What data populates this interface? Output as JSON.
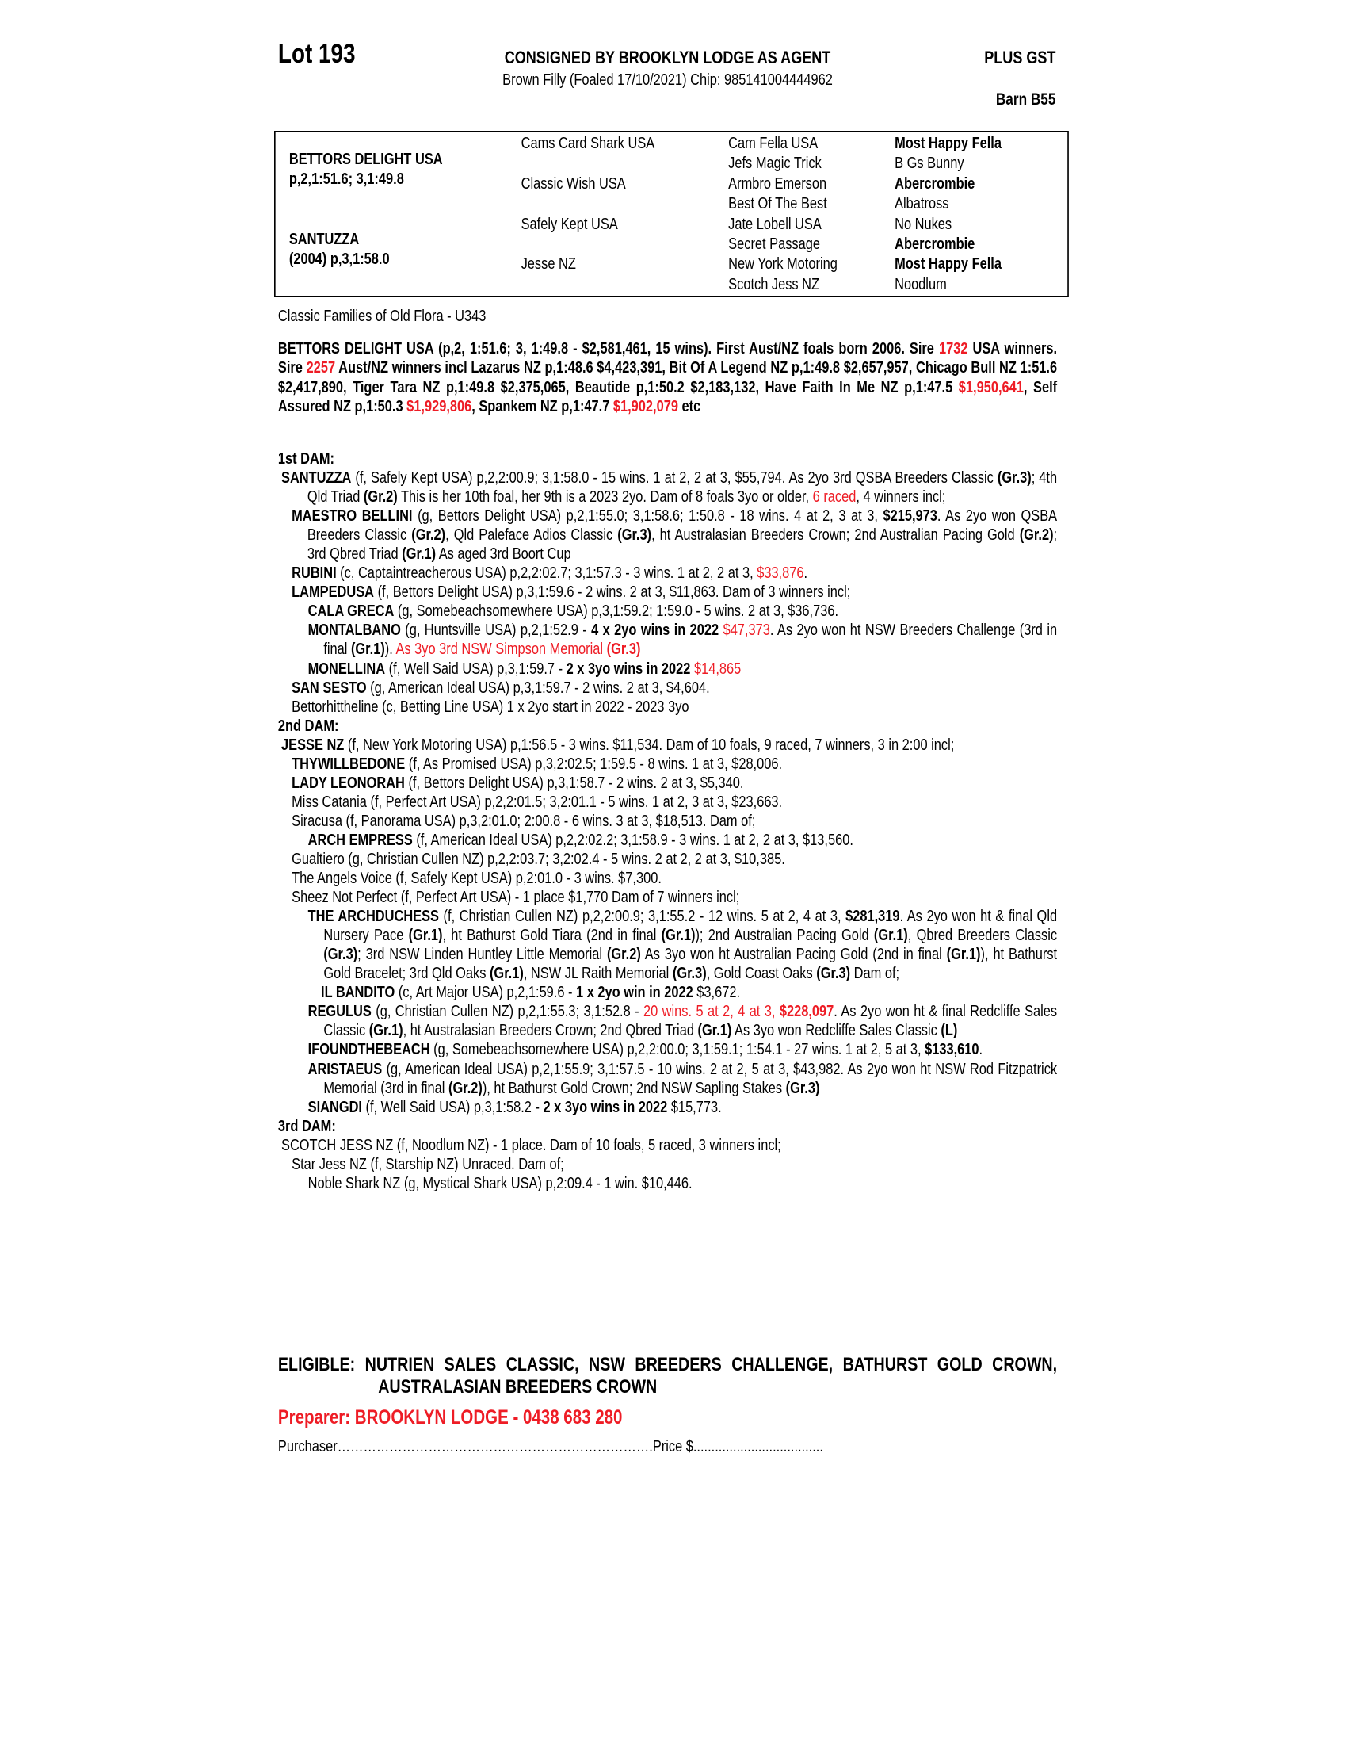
{
  "header": {
    "lot": "Lot 193",
    "consigned": "CONSIGNED BY BROOKLYN LODGE AS AGENT",
    "gst": "PLUS GST",
    "description": "Brown Filly (Foaled 17/10/2021) Chip: 985141004444962",
    "barn": "Barn B55"
  },
  "pedigree_table": {
    "sire_name": "BETTORS DELIGHT USA",
    "sire_record": "p,2,1:51.6; 3,1:49.8",
    "dam_name": "SANTUZZA",
    "dam_record": "(2004) p,3,1:58.0",
    "grandparents": [
      "Cams Card Shark USA",
      "Classic Wish USA",
      "Safely Kept USA",
      "Jesse NZ"
    ],
    "great_grandparents": [
      "Cam Fella USA",
      "Jefs Magic Trick",
      "Armbro Emerson",
      "Best Of The Best",
      "Jate Lobell USA",
      "Secret Passage",
      "New York Motoring",
      "Scotch Jess NZ"
    ],
    "gg_grandparents": [
      {
        "name": "Most Happy Fella",
        "bold": true
      },
      {
        "name": "B Gs Bunny",
        "bold": false
      },
      {
        "name": "Abercrombie",
        "bold": true
      },
      {
        "name": "Albatross",
        "bold": false
      },
      {
        "name": "No Nukes",
        "bold": false
      },
      {
        "name": "Abercrombie",
        "bold": true
      },
      {
        "name": "Most Happy Fella",
        "bold": true
      },
      {
        "name": "Noodlum",
        "bold": false
      }
    ]
  },
  "family": "Classic Families of Old Flora - U343",
  "sire_paragraph": [
    {
      "t": "BETTORS DELIGHT USA (p,2, 1:51.6; 3, 1:49.8 - $2,581,461, 15 wins). First Aust/NZ foals born 2006. Sire "
    },
    {
      "t": "1732",
      "r": true
    },
    {
      "t": " USA winners. Sire "
    },
    {
      "t": "2257",
      "r": true
    },
    {
      "t": " Aust/NZ winners incl Lazarus NZ p,1:48.6 $4,423,391, Bit Of A Legend NZ p,1:49.8 $2,657,957, Chicago Bull NZ 1:51.6 $2,417,890,  Tiger Tara NZ p,1:49.8 $2,375,065, Beautide p,1:50.2 $2,183,132, Have Faith In Me NZ p,1:47.5 "
    },
    {
      "t": "$1,950,641",
      "r": true
    },
    {
      "t": ", Self Assured NZ p,1:50.3 "
    },
    {
      "t": "$1,929,806",
      "r": true
    },
    {
      "t": ", Spankem NZ p,1:47.7 "
    },
    {
      "t": "$1,902,079",
      "r": true
    },
    {
      "t": " etc"
    }
  ],
  "pedigree": {
    "entries": [
      {
        "level": "h",
        "segments": [
          {
            "t": "1st DAM:"
          }
        ]
      },
      {
        "level": "l0",
        "segments": [
          {
            "t": "SANTUZZA",
            "b": true
          },
          {
            "t": " (f, Safely Kept USA) p,2,2:00.9; 3,1:58.0 - 15 wins. 1 at 2, 2 at 3, $55,794. As 2yo 3rd QSBA Breeders Classic "
          },
          {
            "t": "(Gr.3)",
            "b": true
          },
          {
            "t": "; 4th Qld Triad "
          },
          {
            "t": "(Gr.2)",
            "b": true
          },
          {
            "t": " This is her 10th foal, her 9th is a 2023 2yo. Dam of 8 foals 3yo or older, "
          },
          {
            "t": "6 raced",
            "r": true
          },
          {
            "t": ", 4 winners incl;"
          }
        ]
      },
      {
        "level": "l1",
        "segments": [
          {
            "t": "MAESTRO BELLINI",
            "b": true
          },
          {
            "t": " (g, Bettors Delight USA) p,2,1:55.0; 3,1:58.6; 1:50.8 - 18 wins. 4 at 2, 3 at 3, "
          },
          {
            "t": "$215,973",
            "b": true
          },
          {
            "t": ". As 2yo won QSBA Breeders Classic "
          },
          {
            "t": "(Gr.2)",
            "b": true
          },
          {
            "t": ", Qld Paleface Adios Classic "
          },
          {
            "t": "(Gr.3)",
            "b": true
          },
          {
            "t": ", ht Australasian Breeders Crown; 2nd Australian Pacing Gold "
          },
          {
            "t": "(Gr.2)",
            "b": true
          },
          {
            "t": "; 3rd Qbred Triad "
          },
          {
            "t": "(Gr.1)",
            "b": true
          },
          {
            "t": " As aged 3rd Boort Cup"
          }
        ]
      },
      {
        "level": "l1",
        "segments": [
          {
            "t": "RUBINI",
            "b": true
          },
          {
            "t": " (c, Captaintreacherous USA) p,2,2:02.7; 3,1:57.3 - 3 wins. 1 at 2, 2 at 3, "
          },
          {
            "t": "$33,876",
            "r": true
          },
          {
            "t": "."
          }
        ]
      },
      {
        "level": "l1",
        "segments": [
          {
            "t": "LAMPEDUSA",
            "b": true
          },
          {
            "t": " (f, Bettors Delight USA) p,3,1:59.6 - 2 wins. 2 at 3, $11,863. Dam of 3 winners incl;"
          }
        ]
      },
      {
        "level": "l2",
        "segments": [
          {
            "t": "CALA GRECA",
            "b": true
          },
          {
            "t": " (g, Somebeachsomewhere USA) p,3,1:59.2; 1:59.0 - 5 wins. 2 at 3, $36,736."
          }
        ]
      },
      {
        "level": "l2",
        "segments": [
          {
            "t": "MONTALBANO",
            "b": true
          },
          {
            "t": " (g, Huntsville USA) p,2,1:52.9 - "
          },
          {
            "t": "4 x 2yo wins in 2022",
            "b": true
          },
          {
            "t": " "
          },
          {
            "t": "$47,373",
            "r": true
          },
          {
            "t": ". As 2yo won ht NSW Breeders Challenge (3rd in final "
          },
          {
            "t": "(Gr.1)",
            "b": true
          },
          {
            "t": "). "
          },
          {
            "t": "As 3yo 3rd NSW Simpson Memorial ",
            "r": true
          },
          {
            "t": "(Gr.3)",
            "r": true,
            "b": true
          }
        ]
      },
      {
        "level": "l2",
        "segments": [
          {
            "t": "MONELLINA",
            "b": true
          },
          {
            "t": " (f, Well Said USA) p,3,1:59.7 - "
          },
          {
            "t": "2 x 3yo wins in 2022",
            "b": true
          },
          {
            "t": " "
          },
          {
            "t": "$14,865",
            "r": true
          }
        ]
      },
      {
        "level": "l1",
        "segments": [
          {
            "t": "SAN SESTO",
            "b": true
          },
          {
            "t": " (g, American Ideal USA) p,3,1:59.7 - 2 wins. 2 at 3, $4,604."
          }
        ]
      },
      {
        "level": "l1",
        "segments": [
          {
            "t": "Bettorhittheline (c, Betting Line USA) 1 x 2yo start in 2022 - 2023 3yo"
          }
        ]
      },
      {
        "level": "h",
        "segments": [
          {
            "t": "2nd DAM:"
          }
        ]
      },
      {
        "level": "l0",
        "segments": [
          {
            "t": "JESSE NZ",
            "b": true
          },
          {
            "t": " (f, New York Motoring USA) p,1:56.5 - 3 wins. $11,534. Dam of 10 foals, 9 raced, 7 winners, 3 in 2:00 incl;"
          }
        ]
      },
      {
        "level": "l1",
        "segments": [
          {
            "t": "THYWILLBEDONE",
            "b": true
          },
          {
            "t": " (f, As Promised USA) p,3,2:02.5; 1:59.5 - 8 wins. 1 at 3, $28,006."
          }
        ]
      },
      {
        "level": "l1",
        "segments": [
          {
            "t": "LADY LEONORAH",
            "b": true
          },
          {
            "t": " (f, Bettors Delight USA) p,3,1:58.7 - 2 wins. 2 at 3, $5,340."
          }
        ]
      },
      {
        "level": "l1",
        "segments": [
          {
            "t": "Miss Catania (f, Perfect Art USA) p,2,2:01.5; 3,2:01.1 - 5 wins. 1 at 2, 3 at 3, $23,663."
          }
        ]
      },
      {
        "level": "l1",
        "segments": [
          {
            "t": "Siracusa (f, Panorama USA) p,3,2:01.0; 2:00.8 - 6 wins. 3 at 3, $18,513. Dam of;"
          }
        ]
      },
      {
        "level": "l2",
        "segments": [
          {
            "t": "ARCH EMPRESS",
            "b": true
          },
          {
            "t": " (f, American Ideal USA) p,2,2:02.2; 3,1:58.9 - 3 wins. 1 at 2, 2 at 3, $13,560."
          }
        ]
      },
      {
        "level": "l1",
        "segments": [
          {
            "t": "Gualtiero (g, Christian Cullen NZ) p,2,2:03.7; 3,2:02.4 - 5 wins. 2 at 2, 2 at 3, $10,385."
          }
        ]
      },
      {
        "level": "l1",
        "segments": [
          {
            "t": "The Angels Voice (f, Safely Kept USA) p,2:01.0 - 3 wins. $7,300."
          }
        ]
      },
      {
        "level": "l1",
        "segments": [
          {
            "t": "Sheez Not Perfect (f, Perfect Art USA) - 1 place $1,770 Dam of 7 winners incl;"
          }
        ]
      },
      {
        "level": "l2",
        "segments": [
          {
            "t": "THE ARCHDUCHESS",
            "b": true
          },
          {
            "t": " (f, Christian Cullen NZ) p,2,2:00.9; 3,1:55.2 - 12 wins. 5 at 2, 4 at 3, "
          },
          {
            "t": "$281,319",
            "b": true
          },
          {
            "t": ". As 2yo won ht & final Qld Nursery Pace "
          },
          {
            "t": "(Gr.1)",
            "b": true
          },
          {
            "t": ", ht Bathurst Gold Tiara (2nd in final "
          },
          {
            "t": "(Gr.1)",
            "b": true
          },
          {
            "t": "); 2nd Australian Pacing Gold "
          },
          {
            "t": "(Gr.1)",
            "b": true
          },
          {
            "t": ", Qbred Breeders Classic "
          },
          {
            "t": "(Gr.3)",
            "b": true
          },
          {
            "t": "; 3rd NSW Linden Huntley Little Memorial "
          },
          {
            "t": "(Gr.2)",
            "b": true
          },
          {
            "t": " As 3yo won ht Australian Pacing Gold (2nd in final "
          },
          {
            "t": "(Gr.1)",
            "b": true
          },
          {
            "t": "), ht Bathurst Gold Bracelet; 3rd Qld Oaks "
          },
          {
            "t": "(Gr.1)",
            "b": true
          },
          {
            "t": ", NSW JL Raith Memorial "
          },
          {
            "t": "(Gr.3)",
            "b": true
          },
          {
            "t": ", Gold Coast Oaks "
          },
          {
            "t": "(Gr.3)",
            "b": true
          },
          {
            "t": " Dam of;"
          }
        ]
      },
      {
        "level": "l3",
        "segments": [
          {
            "t": "IL BANDITO",
            "b": true
          },
          {
            "t": " (c, Art Major USA) p,2,1:59.6 - "
          },
          {
            "t": "1 x 2yo win in 2022",
            "b": true
          },
          {
            "t": " $3,672."
          }
        ]
      },
      {
        "level": "l2",
        "segments": [
          {
            "t": "REGULUS",
            "b": true
          },
          {
            "t": " (g, Christian Cullen NZ) p,2,1:55.3; 3,1:52.8 - "
          },
          {
            "t": "20 wins. 5 at 2, 4 at 3, ",
            "r": true
          },
          {
            "t": "$228,097",
            "r": true,
            "b": true
          },
          {
            "t": ". As 2yo won ht & final Redcliffe Sales Classic "
          },
          {
            "t": "(Gr.1)",
            "b": true
          },
          {
            "t": ", ht Australasian Breeders Crown; 2nd Qbred Triad "
          },
          {
            "t": "(Gr.1)",
            "b": true
          },
          {
            "t": " As 3yo won Redcliffe Sales Classic "
          },
          {
            "t": "(L)",
            "b": true
          }
        ]
      },
      {
        "level": "l2",
        "segments": [
          {
            "t": "IFOUNDTHEBEACH",
            "b": true
          },
          {
            "t": " (g, Somebeachsomewhere USA) p,2,2:00.0; 3,1:59.1; 1:54.1 - 27 wins. 1 at 2, 5 at 3, "
          },
          {
            "t": "$133,610",
            "b": true
          },
          {
            "t": "."
          }
        ]
      },
      {
        "level": "l2",
        "segments": [
          {
            "t": "ARISTAEUS",
            "b": true
          },
          {
            "t": " (g, American Ideal USA) p,2,1:55.9; 3,1:57.5 - 10 wins. 2 at 2, 5 at 3, $43,982. As 2yo won ht NSW Rod Fitzpatrick Memorial (3rd in final "
          },
          {
            "t": "(Gr.2)",
            "b": true
          },
          {
            "t": "), ht Bathurst Gold Crown; 2nd NSW Sapling Stakes "
          },
          {
            "t": "(Gr.3)",
            "b": true
          }
        ]
      },
      {
        "level": "l2",
        "segments": [
          {
            "t": "SIANGDI",
            "b": true
          },
          {
            "t": " (f, Well Said USA) p,3,1:58.2 - "
          },
          {
            "t": "2 x 3yo wins in 2022",
            "b": true
          },
          {
            "t": " $15,773."
          }
        ]
      },
      {
        "level": "h",
        "segments": [
          {
            "t": "3rd DAM:"
          }
        ]
      },
      {
        "level": "l0",
        "segments": [
          {
            "t": "SCOTCH JESS NZ (f, Noodlum NZ) - 1 place. Dam of 10 foals, 5 raced, 3 winners incl;"
          }
        ]
      },
      {
        "level": "l1",
        "segments": [
          {
            "t": "Star Jess NZ (f, Starship NZ) Unraced. Dam of;"
          }
        ]
      },
      {
        "level": "l2",
        "segments": [
          {
            "t": "Noble Shark NZ (g, Mystical Shark USA) p,2:09.4 - 1 win. $10,446."
          }
        ]
      }
    ]
  },
  "eligible": "ELIGIBLE: NUTRIEN SALES CLASSIC, NSW BREEDERS CHALLENGE, BATHURST GOLD CROWN, AUSTRALASIAN BREEDERS CROWN",
  "preparer": "Preparer: BROOKLYN LODGE - 0438 683 280",
  "purchaser": "Purchaser……………………………………………………………….Price $....................................",
  "colors": {
    "highlight": "#ee1c25",
    "text": "#000000"
  }
}
